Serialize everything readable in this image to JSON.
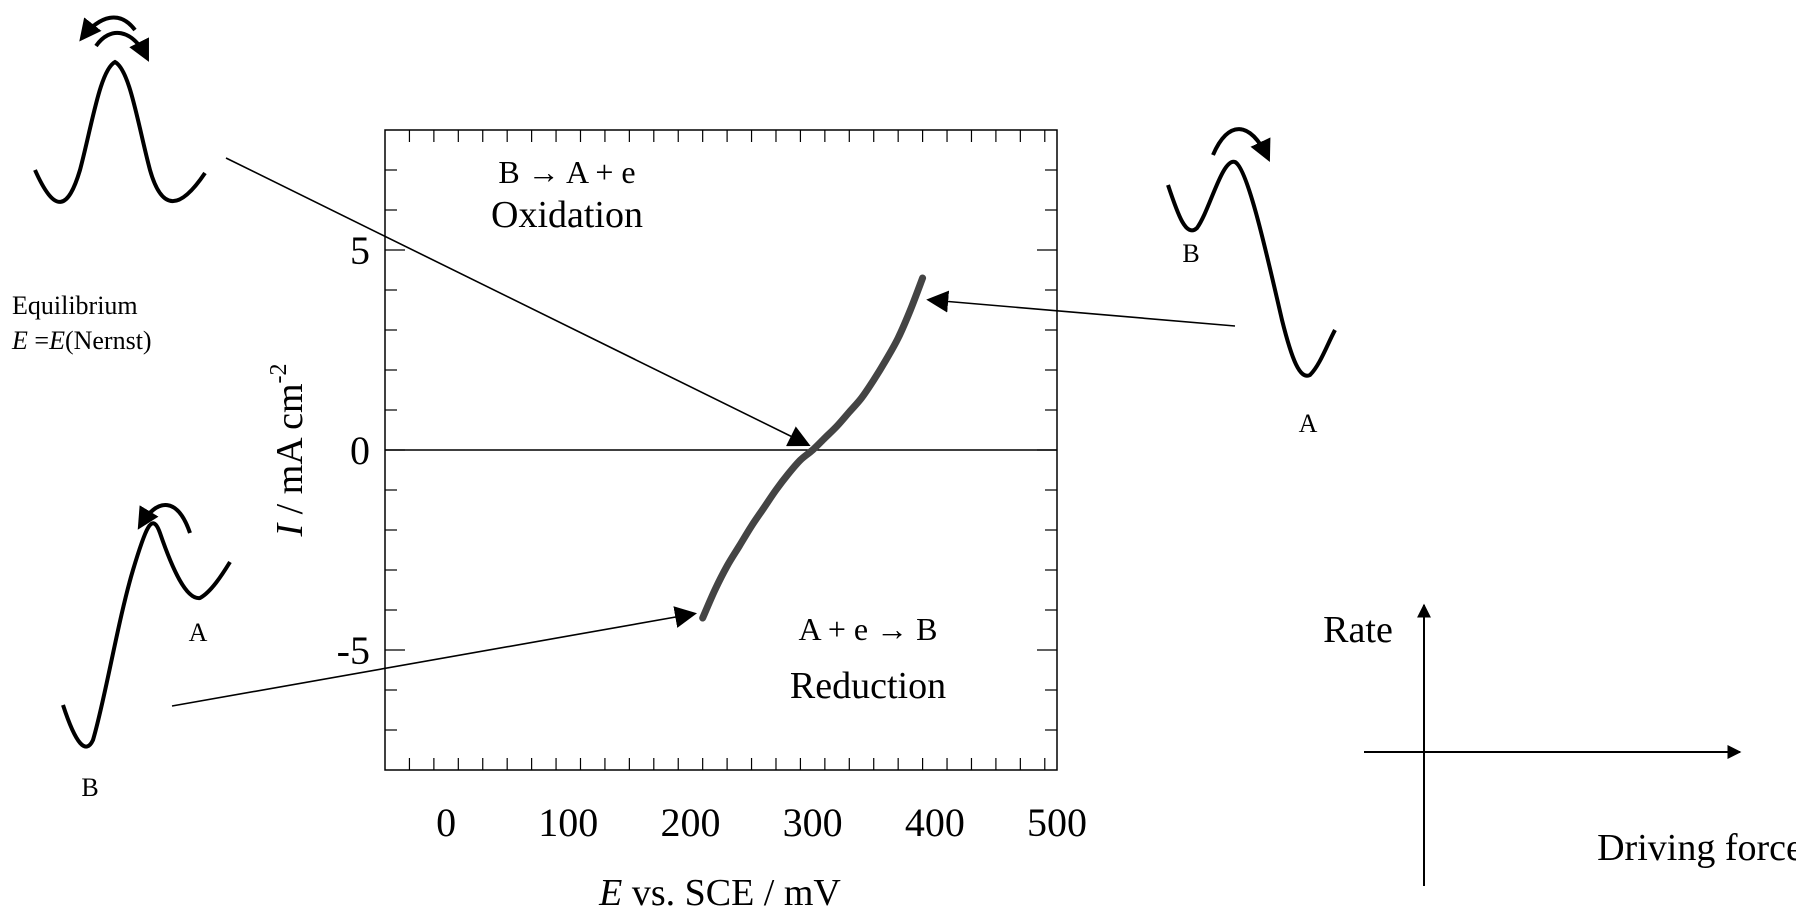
{
  "chart_data": {
    "type": "line",
    "x_label_var": "E",
    "x_label_rest": " vs. SCE / mV",
    "y_label_var": "I",
    "y_label_rest": " / mA cm",
    "y_label_sup": "-2",
    "xlim": [
      -50,
      500
    ],
    "ylim": [
      -8,
      8
    ],
    "x_ticks": [
      0,
      100,
      200,
      300,
      400,
      500
    ],
    "y_ticks": [
      5,
      0,
      -5
    ],
    "grid": false,
    "series": [
      {
        "x": [
          210,
          220,
          230,
          240,
          250,
          260,
          270,
          280,
          290,
          300,
          310,
          320,
          330,
          340,
          350,
          360,
          370,
          380,
          390
        ],
        "y": [
          -4.2,
          -3.5,
          -2.9,
          -2.4,
          -1.9,
          -1.45,
          -1.0,
          -0.6,
          -0.25,
          0.0,
          0.3,
          0.6,
          0.95,
          1.3,
          1.75,
          2.25,
          2.8,
          3.5,
          4.3
        ],
        "color": "#444444"
      }
    ],
    "annotations": {
      "oxidation_eq": "B → A + e",
      "oxidation": "Oxidation",
      "reduction_eq": "A + e → B",
      "reduction": "Reduction"
    }
  },
  "left_panel": {
    "equilibrium": "Equilibrium",
    "nernst_var1": "E",
    "nernst_eq": " =",
    "nernst_var2": "E",
    "nernst_rest": "(Nernst)",
    "bottom_label_A": "A",
    "bottom_label_B": "B"
  },
  "right_panel": {
    "label_B": "B",
    "label_A": "A"
  },
  "inset": {
    "y_label": "Rate",
    "x_label": "Driving force"
  }
}
